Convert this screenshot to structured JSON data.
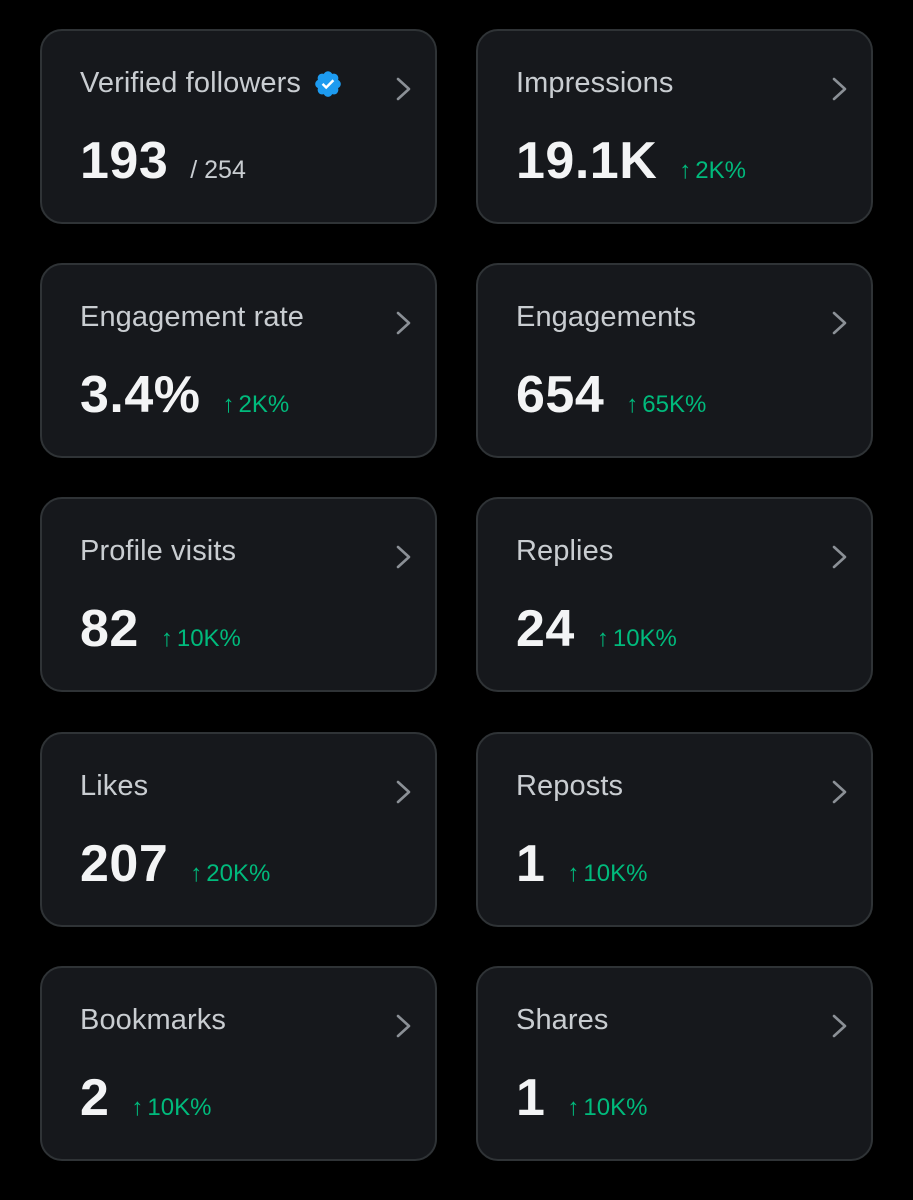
{
  "colors": {
    "background": "#000000",
    "card_background": "#16181c",
    "card_border": "#2f3336",
    "positive": "#00ba7c",
    "verified_badge": "#1d9bf0"
  },
  "metrics": [
    {
      "label": "Verified followers",
      "value": "193",
      "sub": "/ 254",
      "badge_icon": "verified-badge-icon"
    },
    {
      "label": "Impressions",
      "value": "19.1K",
      "arrow": "↑",
      "delta": "2K%"
    },
    {
      "label": "Engagement rate",
      "value": "3.4%",
      "arrow": "↑",
      "delta": "2K%"
    },
    {
      "label": "Engagements",
      "value": "654",
      "arrow": "↑",
      "delta": "65K%"
    },
    {
      "label": "Profile visits",
      "value": "82",
      "arrow": "↑",
      "delta": "10K%"
    },
    {
      "label": "Replies",
      "value": "24",
      "arrow": "↑",
      "delta": "10K%"
    },
    {
      "label": "Likes",
      "value": "207",
      "arrow": "↑",
      "delta": "20K%"
    },
    {
      "label": "Reposts",
      "value": "1",
      "arrow": "↑",
      "delta": "10K%"
    },
    {
      "label": "Bookmarks",
      "value": "2",
      "arrow": "↑",
      "delta": "10K%"
    },
    {
      "label": "Shares",
      "value": "1",
      "arrow": "↑",
      "delta": "10K%"
    }
  ]
}
